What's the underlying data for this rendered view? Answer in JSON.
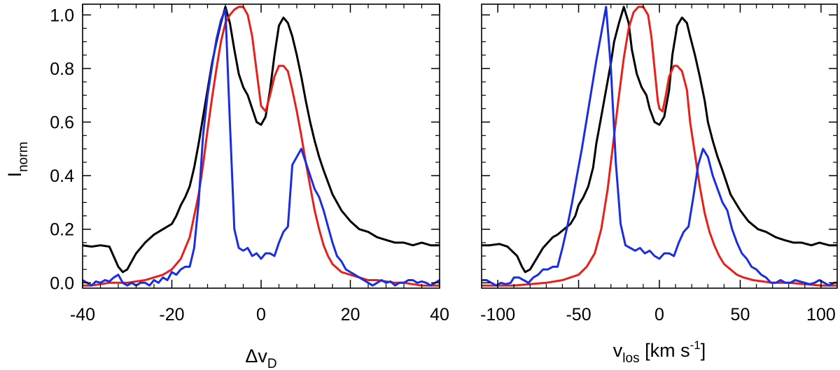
{
  "figure": {
    "ylabel_main": "I",
    "ylabel_sub": "norm"
  },
  "chart_data": [
    {
      "type": "line",
      "xlabel_prefix": "Δv",
      "xlabel_sub": "D",
      "xlim": [
        -40,
        40
      ],
      "ylim": [
        -0.02,
        1.04
      ],
      "xticks": [
        -40,
        -20,
        0,
        20,
        40
      ],
      "xtick_labels": [
        "-40",
        "-20",
        "0",
        "20",
        "40"
      ],
      "yticks": [
        0.0,
        0.2,
        0.4,
        0.6,
        0.8,
        1.0
      ],
      "ytick_labels": [
        "0.0",
        "0.2",
        "0.4",
        "0.6",
        "0.8",
        "1.0"
      ],
      "series": [
        {
          "color": "#000000",
          "x": [
            -40,
            -38,
            -36,
            -34,
            -32,
            -31,
            -30,
            -29,
            -28,
            -26,
            -24,
            -23,
            -22,
            -20,
            -19,
            -18,
            -17,
            -16,
            -15,
            -14,
            -13,
            -12,
            -11,
            -10,
            -9,
            -8,
            -7,
            -6,
            -5,
            -4,
            -3,
            -2,
            -1,
            0,
            1,
            2,
            3,
            4,
            5,
            6,
            7,
            8,
            9,
            10,
            11,
            12,
            13,
            14,
            16,
            18,
            20,
            22,
            24,
            26,
            28,
            30,
            32,
            34,
            36,
            38,
            40
          ],
          "y": [
            0.14,
            0.135,
            0.14,
            0.135,
            0.06,
            0.04,
            0.05,
            0.08,
            0.11,
            0.15,
            0.18,
            0.19,
            0.2,
            0.22,
            0.25,
            0.29,
            0.32,
            0.36,
            0.43,
            0.52,
            0.62,
            0.72,
            0.82,
            0.9,
            0.97,
            1.03,
            0.97,
            0.87,
            0.78,
            0.73,
            0.7,
            0.65,
            0.6,
            0.59,
            0.62,
            0.72,
            0.85,
            0.96,
            0.99,
            0.97,
            0.92,
            0.85,
            0.77,
            0.68,
            0.6,
            0.53,
            0.47,
            0.42,
            0.33,
            0.27,
            0.23,
            0.2,
            0.19,
            0.17,
            0.16,
            0.15,
            0.15,
            0.14,
            0.15,
            0.14,
            0.14
          ]
        },
        {
          "color": "#e8201a",
          "x": [
            -40,
            -38,
            -36,
            -34,
            -32,
            -30,
            -28,
            -26,
            -24,
            -22,
            -20,
            -18,
            -16,
            -14,
            -13,
            -12,
            -11,
            -10,
            -9,
            -8,
            -7,
            -6,
            -5,
            -4,
            -3,
            -2,
            -1,
            0,
            1,
            2,
            3,
            4,
            5,
            6,
            7,
            8,
            9,
            10,
            11,
            12,
            13,
            14,
            15,
            16,
            18,
            20,
            22,
            24,
            26,
            28,
            30,
            32,
            34,
            36,
            38,
            40
          ],
          "y": [
            -0.01,
            -0.01,
            -0.005,
            0.0,
            0.0,
            0.0,
            0.005,
            0.01,
            0.02,
            0.03,
            0.05,
            0.09,
            0.17,
            0.33,
            0.44,
            0.57,
            0.69,
            0.8,
            0.9,
            0.97,
            1.0,
            1.02,
            1.03,
            1.03,
            1.0,
            0.92,
            0.79,
            0.66,
            0.64,
            0.7,
            0.77,
            0.81,
            0.81,
            0.79,
            0.72,
            0.64,
            0.55,
            0.45,
            0.36,
            0.27,
            0.2,
            0.14,
            0.1,
            0.07,
            0.04,
            0.03,
            0.02,
            0.01,
            0.01,
            0.005,
            0.0,
            0.0,
            -0.005,
            -0.01,
            -0.01,
            -0.01
          ]
        },
        {
          "color": "#1a2ee0",
          "x": [
            -40,
            -39,
            -38,
            -37,
            -36,
            -35,
            -34,
            -33,
            -32,
            -31,
            -30,
            -29,
            -28,
            -27,
            -26,
            -25,
            -24,
            -23,
            -22,
            -21,
            -20,
            -19,
            -18,
            -17,
            -16,
            -15,
            -14,
            -13,
            -12,
            -11,
            -10,
            -9,
            -8,
            -7,
            -6,
            -5,
            -4,
            -3,
            -2,
            -1,
            0,
            1,
            2,
            3,
            4,
            5,
            6,
            7,
            8,
            9,
            10,
            11,
            12,
            13,
            14,
            15,
            16,
            17,
            18,
            19,
            20,
            21,
            22,
            23,
            24,
            25,
            26,
            27,
            28,
            29,
            30,
            31,
            32,
            33,
            34,
            35,
            36,
            37,
            38,
            39,
            40
          ],
          "y": [
            0.01,
            0.0,
            -0.01,
            0.005,
            0.0,
            0.01,
            0.005,
            0.02,
            0.03,
            0.0,
            -0.01,
            0.0,
            -0.01,
            0.0,
            0.0,
            -0.01,
            0.01,
            0.0,
            0.02,
            0.01,
            0.04,
            0.03,
            0.05,
            0.06,
            0.06,
            0.13,
            0.3,
            0.55,
            0.7,
            0.81,
            0.91,
            0.98,
            1.02,
            0.6,
            0.2,
            0.13,
            0.12,
            0.13,
            0.1,
            0.11,
            0.09,
            0.11,
            0.11,
            0.1,
            0.15,
            0.19,
            0.21,
            0.44,
            0.47,
            0.5,
            0.45,
            0.4,
            0.35,
            0.32,
            0.27,
            0.21,
            0.15,
            0.1,
            0.08,
            0.05,
            0.04,
            0.03,
            0.02,
            0.01,
            0.0,
            -0.01,
            0.0,
            0.01,
            0.0,
            0.005,
            -0.01,
            0.0,
            0.0,
            0.01,
            0.01,
            0.0,
            0.005,
            0.0,
            -0.01,
            0.0,
            0.01
          ]
        }
      ]
    },
    {
      "type": "line",
      "xlabel_prefix": "v",
      "xlabel_sub": "los",
      "xlabel_unit": " [km s",
      "xlabel_sup": "-1",
      "xlabel_end": "]",
      "xlim": [
        -110,
        110
      ],
      "ylim": [
        -0.02,
        1.04
      ],
      "xticks": [
        -100,
        -50,
        0,
        50,
        100
      ],
      "xtick_labels": [
        "-100",
        "-50",
        "0",
        "50",
        "100"
      ],
      "yticks": [
        0.0,
        0.2,
        0.4,
        0.6,
        0.8,
        1.0
      ],
      "ytick_labels": [
        "0.0",
        "0.2",
        "0.4",
        "0.6",
        "0.8",
        "1.0"
      ],
      "series": [
        {
          "color": "#000000",
          "x": [
            -110,
            -105,
            -99,
            -94,
            -88,
            -85,
            -83,
            -80,
            -77,
            -72,
            -66,
            -63,
            -61,
            -55,
            -52,
            -50,
            -47,
            -44,
            -41,
            -39,
            -36,
            -33,
            -30,
            -28,
            -25,
            -22,
            -19,
            -17,
            -14,
            -11,
            -8,
            -6,
            -3,
            0,
            3,
            6,
            8,
            11,
            14,
            17,
            19,
            22,
            25,
            28,
            30,
            33,
            36,
            39,
            44,
            50,
            55,
            61,
            66,
            72,
            77,
            83,
            88,
            94,
            99,
            105,
            110
          ],
          "y": [
            0.14,
            0.14,
            0.145,
            0.135,
            0.1,
            0.06,
            0.04,
            0.05,
            0.08,
            0.13,
            0.17,
            0.18,
            0.19,
            0.22,
            0.25,
            0.29,
            0.32,
            0.36,
            0.43,
            0.52,
            0.62,
            0.72,
            0.82,
            0.9,
            0.97,
            1.03,
            0.97,
            0.87,
            0.78,
            0.73,
            0.7,
            0.65,
            0.6,
            0.59,
            0.62,
            0.72,
            0.85,
            0.96,
            0.99,
            0.97,
            0.92,
            0.85,
            0.77,
            0.68,
            0.6,
            0.53,
            0.47,
            0.42,
            0.33,
            0.27,
            0.23,
            0.2,
            0.19,
            0.17,
            0.16,
            0.15,
            0.15,
            0.14,
            0.15,
            0.14,
            0.14
          ]
        },
        {
          "color": "#e8201a",
          "x": [
            -110,
            -100,
            -90,
            -80,
            -70,
            -60,
            -55,
            -50,
            -45,
            -40,
            -36,
            -32,
            -28,
            -25,
            -22,
            -19,
            -16,
            -13,
            -10,
            -7,
            -5,
            -3,
            -1,
            0,
            2,
            4,
            6,
            9,
            11,
            14,
            17,
            19,
            22,
            25,
            28,
            31,
            34,
            37,
            40,
            44,
            48,
            52,
            58,
            64,
            70,
            80,
            90,
            100,
            110
          ],
          "y": [
            -0.01,
            -0.01,
            -0.01,
            -0.005,
            0.0,
            0.01,
            0.02,
            0.03,
            0.06,
            0.11,
            0.2,
            0.35,
            0.55,
            0.7,
            0.84,
            0.95,
            1.01,
            1.03,
            1.03,
            1.0,
            0.92,
            0.8,
            0.68,
            0.65,
            0.64,
            0.7,
            0.77,
            0.81,
            0.81,
            0.79,
            0.72,
            0.6,
            0.48,
            0.36,
            0.26,
            0.19,
            0.14,
            0.1,
            0.07,
            0.05,
            0.03,
            0.02,
            0.01,
            0.005,
            0.0,
            0.0,
            -0.005,
            -0.01,
            -0.01
          ]
        },
        {
          "color": "#1a2ee0",
          "x": [
            -110,
            -107,
            -104,
            -101,
            -98,
            -95,
            -92,
            -90,
            -87,
            -84,
            -81,
            -78,
            -75,
            -72,
            -69,
            -66,
            -63,
            -60,
            -57,
            -54,
            -51,
            -48,
            -45,
            -42,
            -39,
            -36,
            -33,
            -30,
            -27,
            -24,
            -21,
            -18,
            -15,
            -12,
            -9,
            -6,
            -3,
            0,
            3,
            6,
            9,
            12,
            15,
            18,
            21,
            24,
            27,
            30,
            33,
            36,
            39,
            42,
            45,
            48,
            51,
            54,
            57,
            60,
            63,
            66,
            69,
            72,
            75,
            78,
            81,
            84,
            87,
            90,
            93,
            96,
            99,
            102,
            105,
            108,
            110
          ],
          "y": [
            0.01,
            0.01,
            0.0,
            -0.01,
            0.0,
            -0.005,
            0.0,
            0.02,
            0.02,
            0.01,
            0.0,
            0.02,
            0.03,
            0.05,
            0.05,
            0.06,
            0.06,
            0.13,
            0.21,
            0.3,
            0.4,
            0.5,
            0.61,
            0.72,
            0.83,
            0.93,
            1.03,
            0.8,
            0.45,
            0.22,
            0.14,
            0.13,
            0.12,
            0.13,
            0.11,
            0.12,
            0.1,
            0.09,
            0.11,
            0.11,
            0.1,
            0.15,
            0.19,
            0.21,
            0.32,
            0.44,
            0.5,
            0.47,
            0.4,
            0.35,
            0.3,
            0.27,
            0.2,
            0.15,
            0.11,
            0.09,
            0.06,
            0.05,
            0.03,
            0.02,
            0.0,
            0.0,
            0.01,
            0.0,
            0.0,
            0.01,
            0.005,
            0.0,
            -0.005,
            0.0,
            0.01,
            0.0,
            -0.01,
            0.0,
            0.0
          ]
        }
      ]
    }
  ]
}
